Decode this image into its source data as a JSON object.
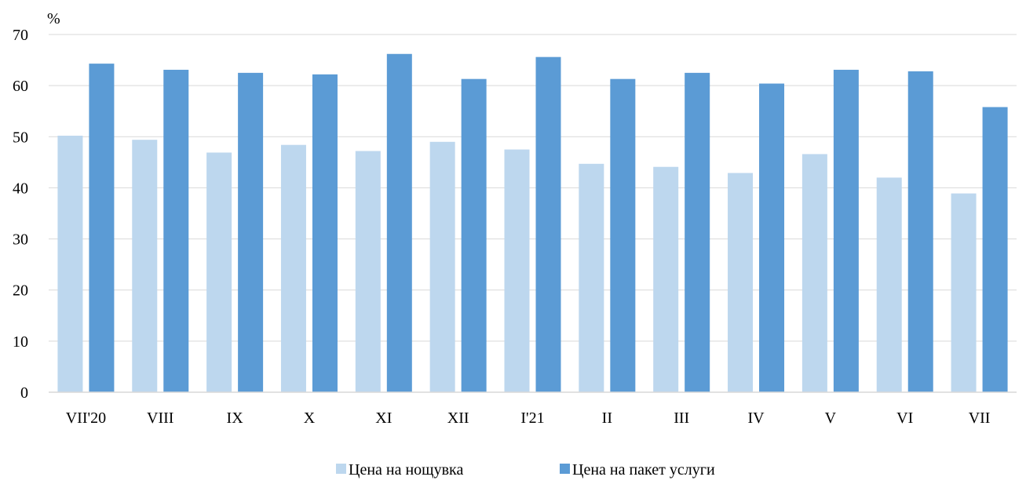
{
  "chart_data": {
    "type": "bar",
    "title": "",
    "xlabel": "",
    "ylabel": "%",
    "ylim": [
      0,
      70
    ],
    "yticks": [
      0,
      10,
      20,
      30,
      40,
      50,
      60,
      70
    ],
    "grid": true,
    "legend_position": "bottom",
    "categories": [
      "VII'20",
      "VIII",
      "IX",
      "X",
      "XI",
      "XII",
      "I'21",
      "II",
      "III",
      "IV",
      "V",
      "VI",
      "VII"
    ],
    "series": [
      {
        "name": "Цена на нощувка",
        "color": "#bdd7ee",
        "values": [
          50.2,
          49.4,
          46.9,
          48.4,
          47.2,
          49.0,
          47.5,
          44.7,
          44.1,
          42.9,
          46.6,
          42.0,
          38.9
        ]
      },
      {
        "name": "Цена на пакет услуги",
        "color": "#5b9bd5",
        "values": [
          64.3,
          63.1,
          62.5,
          62.2,
          66.2,
          61.3,
          65.6,
          61.3,
          62.5,
          60.4,
          63.1,
          62.8,
          55.8
        ]
      }
    ]
  }
}
